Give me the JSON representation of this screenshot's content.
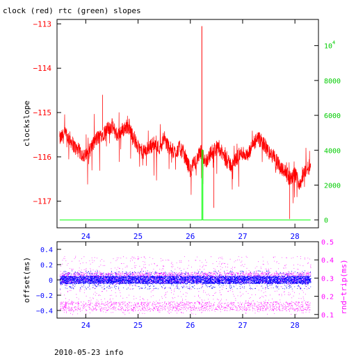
{
  "title": "clock (red) rtc (green) slopes",
  "footer": "2010-05-23 info",
  "colors": {
    "clock": "#ff0000",
    "rtc": "#00ff00",
    "offset": "#0000ff",
    "rtt": "#ff00ff",
    "axis": "#000000"
  },
  "chart_data": [
    {
      "type": "line",
      "panel": "top",
      "ylabel": "clockslope",
      "xlim": [
        23.45,
        28.45
      ],
      "ylim": [
        -117.6,
        -112.9
      ],
      "x_ticks": [
        24,
        25,
        26,
        27,
        28
      ],
      "y_ticks": [
        -113,
        -114,
        -115,
        -116,
        -117
      ],
      "y2label": "",
      "y2lim": [
        -450,
        11500
      ],
      "y2_ticks": [
        0,
        2000,
        4000,
        6000,
        8000
      ],
      "y2_tick_labels": [
        "0",
        "2000",
        "4000",
        "6000",
        "8000"
      ],
      "y2_top_label": "10",
      "y2_top_label_exp": "4",
      "y2_top_value": 10000,
      "series": [
        {
          "color": "#ff0000",
          "axis": "left",
          "x": [
            23.5,
            23.6,
            23.7,
            23.8,
            23.9,
            24.0,
            24.1,
            24.2,
            24.3,
            24.4,
            24.5,
            24.6,
            24.7,
            24.8,
            24.9,
            25.0,
            25.1,
            25.2,
            25.3,
            25.4,
            25.5,
            25.6,
            25.7,
            25.8,
            25.9,
            26.0,
            26.1,
            26.2,
            26.22,
            26.25,
            26.3,
            26.4,
            26.5,
            26.6,
            26.7,
            26.8,
            26.9,
            27.0,
            27.1,
            27.2,
            27.3,
            27.4,
            27.5,
            27.6,
            27.7,
            27.8,
            27.9,
            28.0,
            28.1,
            28.2,
            28.3
          ],
          "y": [
            -115.6,
            -115.5,
            -115.6,
            -115.8,
            -115.9,
            -116.0,
            -115.8,
            -115.6,
            -115.5,
            -115.4,
            -115.3,
            -115.5,
            -115.4,
            -115.3,
            -115.5,
            -115.8,
            -115.9,
            -115.8,
            -115.7,
            -115.8,
            -115.6,
            -115.8,
            -115.9,
            -115.8,
            -116.0,
            -116.3,
            -116.1,
            -115.9,
            -113.0,
            -116.0,
            -116.1,
            -115.9,
            -115.8,
            -115.9,
            -116.1,
            -116.2,
            -116.0,
            -115.9,
            -116.0,
            -115.7,
            -115.6,
            -115.7,
            -115.9,
            -116.0,
            -116.2,
            -116.3,
            -116.5,
            -116.4,
            -116.6,
            -116.3,
            -116.2
          ]
        },
        {
          "color": "#00ff00",
          "axis": "right",
          "x": [
            23.5,
            26.2,
            26.22,
            26.22,
            26.24,
            26.24,
            28.3
          ],
          "y": [
            0,
            0,
            0,
            4000,
            4000,
            0,
            0
          ]
        }
      ]
    },
    {
      "type": "scatter",
      "panel": "bottom",
      "ylabel": "offset(ms)",
      "y2label": "rnd−trip(ms)",
      "xlim": [
        23.45,
        28.45
      ],
      "ylim": [
        -0.5,
        0.5
      ],
      "y_ticks": [
        0.4,
        0.2,
        0,
        -0.2,
        -0.4
      ],
      "y_tick_labels": [
        "0.4",
        "0.2",
        "0",
        "−0.2",
        "−0.4"
      ],
      "y2lim": [
        0.08,
        0.5
      ],
      "y2_ticks": [
        0.5,
        0.4,
        0.3,
        0.2,
        0.1
      ],
      "y2_tick_labels": [
        "0.5",
        "0.4",
        "0.3",
        "0.2",
        "0.1"
      ],
      "x_ticks": [
        24,
        25,
        26,
        27,
        28
      ],
      "series": [
        {
          "color": "#ff00ff",
          "axis": "right",
          "x_range": [
            23.5,
            28.3
          ],
          "y_band": [
            0.27,
            0.33
          ],
          "y_scatter": [
            0.1,
            0.42
          ]
        },
        {
          "color": "#0000ff",
          "axis": "left",
          "x_range": [
            23.5,
            28.3
          ],
          "y_band": [
            -0.05,
            0.05
          ],
          "y_scatter": [
            -0.12,
            0.12
          ]
        }
      ]
    }
  ]
}
